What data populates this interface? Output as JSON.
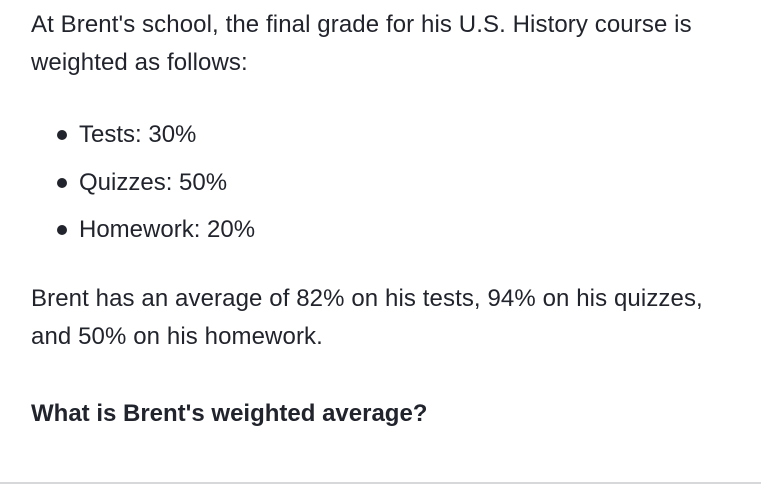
{
  "intro": {
    "line1": "At Brent's school, the final grade for his U.S. History course is",
    "line2": "weighted as follows:"
  },
  "weights": [
    {
      "label": "Tests: 30%"
    },
    {
      "label": "Quizzes: 50%"
    },
    {
      "label": "Homework: 20%"
    }
  ],
  "averages": {
    "line1": "Brent has an average of 82% on his tests, 94% on his quizzes,",
    "line2": "and 50% on his homework."
  },
  "question": "What is Brent's weighted average?"
}
